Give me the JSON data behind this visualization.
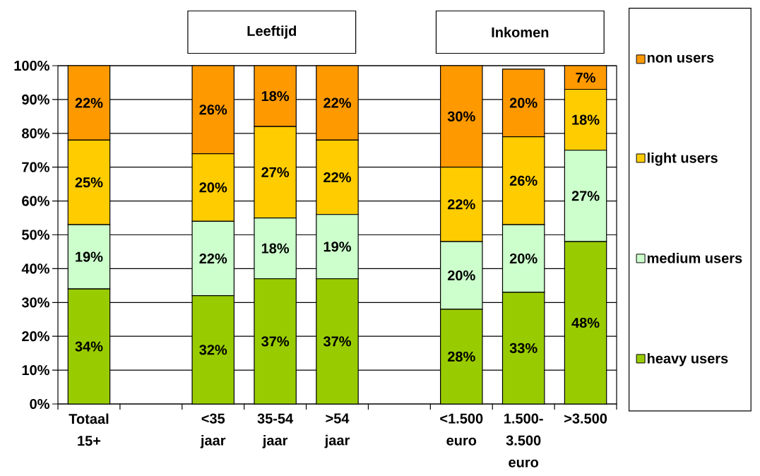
{
  "chart_data": {
    "type": "bar",
    "stacked": true,
    "categories": [
      "Totaal 15+",
      null,
      "<35 jaar",
      "35-54 jaar",
      ">54 jaar",
      null,
      "<1.500 euro",
      "1.500-3.500 euro",
      ">3.500"
    ],
    "series": [
      {
        "name": "heavy users",
        "color": "#99cc00",
        "values": [
          34,
          null,
          32,
          37,
          37,
          null,
          28,
          33,
          48
        ],
        "value_labels": [
          "34%",
          null,
          "32%",
          "37%",
          "37%",
          null,
          "28%",
          "33%",
          "48%"
        ]
      },
      {
        "name": "medium users",
        "color": "#ccffcc",
        "values": [
          19,
          null,
          22,
          18,
          19,
          null,
          20,
          20,
          27
        ],
        "value_labels": [
          "19%",
          null,
          "22%",
          "18%",
          "19%",
          null,
          "20%",
          "20%",
          "27%"
        ]
      },
      {
        "name": "light users",
        "color": "#ffcc00",
        "values": [
          25,
          null,
          20,
          27,
          22,
          null,
          22,
          26,
          18
        ],
        "value_labels": [
          "25%",
          null,
          "20%",
          "27%",
          "22%",
          null,
          "22%",
          "26%",
          "18%"
        ]
      },
      {
        "name": "non users",
        "color": "#ff9900",
        "values": [
          22,
          null,
          26,
          18,
          22,
          null,
          30,
          20,
          7
        ],
        "value_labels": [
          "22%",
          null,
          "26%",
          "18%",
          "22%",
          null,
          "30%",
          "20%",
          "7%"
        ]
      }
    ],
    "ylim": [
      0,
      100
    ],
    "yticks": [
      {
        "value": 0,
        "label": "0%"
      },
      {
        "value": 10,
        "label": "10%"
      },
      {
        "value": 20,
        "label": "20%"
      },
      {
        "value": 30,
        "label": "30%"
      },
      {
        "value": 40,
        "label": "40%"
      },
      {
        "value": 50,
        "label": "50%"
      },
      {
        "value": 60,
        "label": "60%"
      },
      {
        "value": 70,
        "label": "70%"
      },
      {
        "value": 80,
        "label": "80%"
      },
      {
        "value": 90,
        "label": "90%"
      },
      {
        "value": 100,
        "label": "100%"
      }
    ],
    "grid": "y",
    "legend": "right",
    "annotations": [
      "Leeftijd",
      "Inkomen"
    ]
  }
}
